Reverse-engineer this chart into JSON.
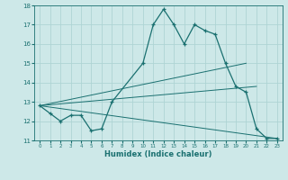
{
  "xlabel": "Humidex (Indice chaleur)",
  "ylabel": "",
  "bg_color": "#cde8e8",
  "grid_color": "#aed4d4",
  "line_color": "#1a7070",
  "xlim": [
    -0.5,
    23.5
  ],
  "ylim": [
    11,
    18
  ],
  "xticks": [
    0,
    1,
    2,
    3,
    4,
    5,
    6,
    7,
    8,
    9,
    10,
    11,
    12,
    13,
    14,
    15,
    16,
    17,
    18,
    19,
    20,
    21,
    22,
    23
  ],
  "yticks": [
    11,
    12,
    13,
    14,
    15,
    16,
    17,
    18
  ],
  "series": [
    {
      "x": [
        0,
        1,
        2,
        3,
        4,
        5,
        6,
        7,
        10,
        11,
        12,
        13,
        14,
        15,
        16,
        17,
        18,
        19,
        20,
        21,
        22,
        23
      ],
      "y": [
        12.8,
        12.4,
        12.0,
        12.3,
        12.3,
        11.5,
        11.6,
        13.0,
        15.0,
        17.0,
        17.8,
        17.0,
        16.0,
        17.0,
        16.7,
        16.5,
        15.0,
        13.8,
        13.5,
        11.6,
        11.1,
        11.1
      ],
      "marker": true
    },
    {
      "x": [
        0,
        20
      ],
      "y": [
        12.8,
        15.0
      ],
      "marker": false
    },
    {
      "x": [
        0,
        21
      ],
      "y": [
        12.8,
        13.8
      ],
      "marker": false
    },
    {
      "x": [
        0,
        23
      ],
      "y": [
        12.8,
        11.1
      ],
      "marker": false
    }
  ]
}
